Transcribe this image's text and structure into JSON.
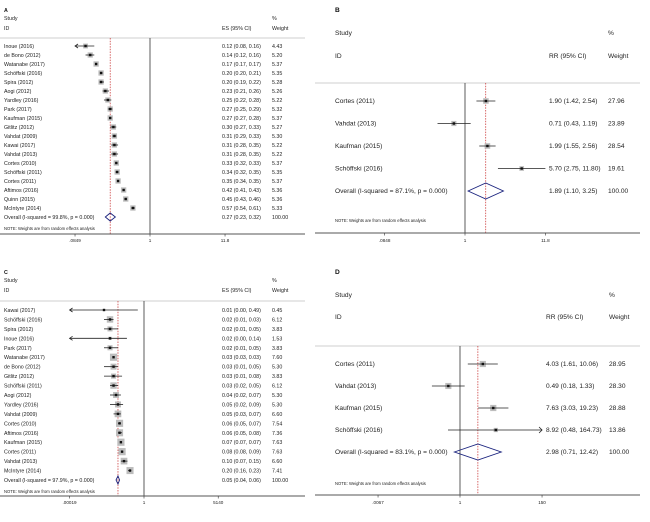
{
  "chart_data": [
    {
      "panel": "A",
      "type": "forest",
      "scale": "log",
      "col_study": "Study",
      "col_id": "ID",
      "col_es": "ES (95% CI)",
      "col_pct": "%",
      "col_weight": "Weight",
      "ticks": [
        {
          "v": 0.0849,
          "label": ".0849"
        },
        {
          "v": 1,
          "label": "1"
        },
        {
          "v": 11.8,
          "label": "11.8"
        }
      ],
      "note": "NOTE: Weights are from random effects analysis",
      "studies": [
        {
          "id": "Inoue (2016)",
          "es": 0.12,
          "lo": 0.08,
          "hi": 0.16,
          "w": 4.43,
          "es_text": "0.12 (0.08, 0.16)",
          "w_text": "4.43"
        },
        {
          "id": "de Bono (2012)",
          "es": 0.14,
          "lo": 0.12,
          "hi": 0.16,
          "w": 5.2,
          "es_text": "0.14 (0.12, 0.16)",
          "w_text": "5.20"
        },
        {
          "id": "Watanabe (2017)",
          "es": 0.17,
          "lo": 0.17,
          "hi": 0.17,
          "w": 5.37,
          "es_text": "0.17 (0.17, 0.17)",
          "w_text": "5.37"
        },
        {
          "id": "Schöffski (2016)",
          "es": 0.2,
          "lo": 0.2,
          "hi": 0.21,
          "w": 5.35,
          "es_text": "0.20 (0.20, 0.21)",
          "w_text": "5.35"
        },
        {
          "id": "Spira (2012)",
          "es": 0.2,
          "lo": 0.19,
          "hi": 0.22,
          "w": 5.28,
          "es_text": "0.20 (0.19, 0.22)",
          "w_text": "5.28"
        },
        {
          "id": "Aogi (2012)",
          "es": 0.23,
          "lo": 0.21,
          "hi": 0.26,
          "w": 5.26,
          "es_text": "0.23 (0.21, 0.26)",
          "w_text": "5.26"
        },
        {
          "id": "Yardley (2016)",
          "es": 0.25,
          "lo": 0.22,
          "hi": 0.28,
          "w": 5.22,
          "es_text": "0.25 (0.22, 0.28)",
          "w_text": "5.22"
        },
        {
          "id": "Park (2017)",
          "es": 0.27,
          "lo": 0.25,
          "hi": 0.29,
          "w": 5.32,
          "es_text": "0.27 (0.25, 0.29)",
          "w_text": "5.32"
        },
        {
          "id": "Kaufman (2015)",
          "es": 0.27,
          "lo": 0.27,
          "hi": 0.28,
          "w": 5.37,
          "es_text": "0.27 (0.27, 0.28)",
          "w_text": "5.37"
        },
        {
          "id": "Gitlitz (2012)",
          "es": 0.3,
          "lo": 0.27,
          "hi": 0.33,
          "w": 5.27,
          "es_text": "0.30 (0.27, 0.33)",
          "w_text": "5.27"
        },
        {
          "id": "Vahdat (2009)",
          "es": 0.31,
          "lo": 0.29,
          "hi": 0.33,
          "w": 5.3,
          "es_text": "0.31 (0.29, 0.33)",
          "w_text": "5.30"
        },
        {
          "id": "Kawai (2017)",
          "es": 0.31,
          "lo": 0.28,
          "hi": 0.35,
          "w": 5.22,
          "es_text": "0.31 (0.28, 0.35)",
          "w_text": "5.22"
        },
        {
          "id": "Vahdat (2013)",
          "es": 0.31,
          "lo": 0.28,
          "hi": 0.35,
          "w": 5.22,
          "es_text": "0.31 (0.28, 0.35)",
          "w_text": "5.22"
        },
        {
          "id": "Cortes (2010)",
          "es": 0.33,
          "lo": 0.32,
          "hi": 0.33,
          "w": 5.37,
          "es_text": "0.33 (0.32, 0.33)",
          "w_text": "5.37"
        },
        {
          "id": "Schöffski (2011)",
          "es": 0.34,
          "lo": 0.32,
          "hi": 0.35,
          "w": 5.35,
          "es_text": "0.34 (0.32, 0.35)",
          "w_text": "5.35"
        },
        {
          "id": "Cortes (2011)",
          "es": 0.35,
          "lo": 0.34,
          "hi": 0.35,
          "w": 5.37,
          "es_text": "0.35 (0.34, 0.35)",
          "w_text": "5.37"
        },
        {
          "id": "Aftimos (2016)",
          "es": 0.42,
          "lo": 0.41,
          "hi": 0.43,
          "w": 5.36,
          "es_text": "0.42 (0.41, 0.43)",
          "w_text": "5.36"
        },
        {
          "id": "Quinn (2015)",
          "es": 0.45,
          "lo": 0.43,
          "hi": 0.46,
          "w": 5.36,
          "es_text": "0.45 (0.43, 0.46)",
          "w_text": "5.36"
        },
        {
          "id": "McIntyre (2014)",
          "es": 0.57,
          "lo": 0.54,
          "hi": 0.61,
          "w": 5.33,
          "es_text": "0.57 (0.54, 0.61)",
          "w_text": "5.33"
        }
      ],
      "overall": {
        "label": "Overall  (I-squared = 99.8%, p = 0.000)",
        "es": 0.27,
        "lo": 0.23,
        "hi": 0.32,
        "es_text": "0.27 (0.23, 0.32)",
        "w_text": "100.00"
      }
    },
    {
      "panel": "B",
      "type": "forest",
      "scale": "log",
      "col_study": "Study",
      "col_id": "ID",
      "col_es": "RR (95% CI)",
      "col_pct": "%",
      "col_weight": "Weight",
      "ticks": [
        {
          "v": 0.0848,
          "label": ".0848"
        },
        {
          "v": 1,
          "label": "1"
        },
        {
          "v": 11.8,
          "label": "11.8"
        }
      ],
      "note": "NOTE: Weights are from random effects analysis",
      "studies": [
        {
          "id": "Cortes (2011)",
          "es": 1.9,
          "lo": 1.42,
          "hi": 2.54,
          "w": 27.96,
          "es_text": "1.90 (1.42, 2.54)",
          "w_text": "27.96"
        },
        {
          "id": "Vahdat (2013)",
          "es": 0.71,
          "lo": 0.43,
          "hi": 1.19,
          "w": 23.89,
          "es_text": "0.71 (0.43, 1.19)",
          "w_text": "23.89"
        },
        {
          "id": "Kaufman (2015)",
          "es": 1.99,
          "lo": 1.55,
          "hi": 2.56,
          "w": 28.54,
          "es_text": "1.99 (1.55, 2.56)",
          "w_text": "28.54"
        },
        {
          "id": "Schöffski (2016)",
          "es": 5.7,
          "lo": 2.75,
          "hi": 11.8,
          "w": 19.61,
          "es_text": "5.70 (2.75, 11.80)",
          "w_text": "19.61"
        }
      ],
      "overall": {
        "label": "Overall  (I-squared = 87.1%, p = 0.000)",
        "es": 1.89,
        "lo": 1.1,
        "hi": 3.25,
        "es_text": "1.89 (1.10, 3.25)",
        "w_text": "100.00"
      }
    },
    {
      "panel": "C",
      "type": "forest",
      "scale": "log",
      "col_study": "Study",
      "col_id": "ID",
      "col_es": "ES (95% CI)",
      "col_pct": "%",
      "col_weight": "Weight",
      "ticks": [
        {
          "v": 0.00019,
          "label": ".00019"
        },
        {
          "v": 1,
          "label": "1"
        },
        {
          "v": 5140,
          "label": "5140"
        }
      ],
      "note": "NOTE: Weights are from random effects analysis",
      "studies": [
        {
          "id": "Kawai (2017)",
          "es": 0.01,
          "lo": 0.0,
          "hi": 0.49,
          "w": 0.45,
          "es_text": "0.01 (0.00, 0.49)",
          "w_text": "0.45"
        },
        {
          "id": "Schöffski (2016)",
          "es": 0.02,
          "lo": 0.01,
          "hi": 0.03,
          "w": 6.12,
          "es_text": "0.02 (0.01, 0.03)",
          "w_text": "6.12"
        },
        {
          "id": "Spira (2012)",
          "es": 0.02,
          "lo": 0.01,
          "hi": 0.05,
          "w": 3.83,
          "es_text": "0.02 (0.01, 0.05)",
          "w_text": "3.83"
        },
        {
          "id": "Inoue (2016)",
          "es": 0.02,
          "lo": 0.0,
          "hi": 0.14,
          "w": 1.53,
          "es_text": "0.02 (0.00, 0.14)",
          "w_text": "1.53"
        },
        {
          "id": "Park (2017)",
          "es": 0.02,
          "lo": 0.01,
          "hi": 0.05,
          "w": 3.83,
          "es_text": "0.02 (0.01, 0.05)",
          "w_text": "3.83"
        },
        {
          "id": "Watanabe (2017)",
          "es": 0.03,
          "lo": 0.03,
          "hi": 0.03,
          "w": 7.6,
          "es_text": "0.03 (0.03, 0.03)",
          "w_text": "7.60"
        },
        {
          "id": "de Bono (2012)",
          "es": 0.03,
          "lo": 0.01,
          "hi": 0.05,
          "w": 5.3,
          "es_text": "0.03 (0.01, 0.05)",
          "w_text": "5.30"
        },
        {
          "id": "Gitlitz (2012)",
          "es": 0.03,
          "lo": 0.01,
          "hi": 0.08,
          "w": 3.83,
          "es_text": "0.03 (0.01, 0.08)",
          "w_text": "3.83"
        },
        {
          "id": "Schöffski (2011)",
          "es": 0.03,
          "lo": 0.02,
          "hi": 0.05,
          "w": 6.12,
          "es_text": "0.03 (0.02, 0.05)",
          "w_text": "6.12"
        },
        {
          "id": "Aogi (2012)",
          "es": 0.04,
          "lo": 0.02,
          "hi": 0.07,
          "w": 5.3,
          "es_text": "0.04 (0.02, 0.07)",
          "w_text": "5.30"
        },
        {
          "id": "Yardley (2016)",
          "es": 0.05,
          "lo": 0.02,
          "hi": 0.09,
          "w": 5.3,
          "es_text": "0.05 (0.02, 0.09)",
          "w_text": "5.30"
        },
        {
          "id": "Vahdat (2009)",
          "es": 0.05,
          "lo": 0.03,
          "hi": 0.07,
          "w": 6.6,
          "es_text": "0.05 (0.03, 0.07)",
          "w_text": "6.60"
        },
        {
          "id": "Cortes (2010)",
          "es": 0.06,
          "lo": 0.05,
          "hi": 0.07,
          "w": 7.54,
          "es_text": "0.06 (0.05, 0.07)",
          "w_text": "7.54"
        },
        {
          "id": "Aftimos (2016)",
          "es": 0.06,
          "lo": 0.05,
          "hi": 0.08,
          "w": 7.36,
          "es_text": "0.06 (0.05, 0.08)",
          "w_text": "7.36"
        },
        {
          "id": "Kaufman (2015)",
          "es": 0.07,
          "lo": 0.07,
          "hi": 0.07,
          "w": 7.63,
          "es_text": "0.07 (0.07, 0.07)",
          "w_text": "7.63"
        },
        {
          "id": "Cortes (2011)",
          "es": 0.08,
          "lo": 0.08,
          "hi": 0.09,
          "w": 7.63,
          "es_text": "0.08 (0.08, 0.09)",
          "w_text": "7.63"
        },
        {
          "id": "Vahdat (2013)",
          "es": 0.1,
          "lo": 0.07,
          "hi": 0.15,
          "w": 6.6,
          "es_text": "0.10 (0.07, 0.15)",
          "w_text": "6.60"
        },
        {
          "id": "McIntyre (2014)",
          "es": 0.2,
          "lo": 0.16,
          "hi": 0.23,
          "w": 7.41,
          "es_text": "0.20 (0.16, 0.23)",
          "w_text": "7.41"
        }
      ],
      "overall": {
        "label": "Overall  (I-squared = 97.9%, p = 0.000)",
        "es": 0.05,
        "lo": 0.04,
        "hi": 0.06,
        "es_text": "0.05 (0.04, 0.06)",
        "w_text": "100.00"
      }
    },
    {
      "panel": "D",
      "type": "forest",
      "scale": "log",
      "col_study": "Study",
      "col_id": "ID",
      "col_es": "RR (95% CI)",
      "col_pct": "%",
      "col_weight": "Weight",
      "ticks": [
        {
          "v": 0.0067,
          "label": ".0067"
        },
        {
          "v": 1,
          "label": "1"
        },
        {
          "v": 150,
          "label": "150"
        }
      ],
      "note": "NOTE: Weights are from random effects analysis",
      "studies": [
        {
          "id": "Cortes (2011)",
          "es": 4.03,
          "lo": 1.61,
          "hi": 10.06,
          "w": 28.95,
          "es_text": "4.03 (1.61, 10.06)",
          "w_text": "28.95"
        },
        {
          "id": "Vahdat (2013)",
          "es": 0.49,
          "lo": 0.18,
          "hi": 1.33,
          "w": 28.3,
          "es_text": "0.49 (0.18, 1.33)",
          "w_text": "28.30"
        },
        {
          "id": "Kaufman (2015)",
          "es": 7.63,
          "lo": 3.03,
          "hi": 19.23,
          "w": 28.88,
          "es_text": "7.63 (3.03, 19.23)",
          "w_text": "28.88"
        },
        {
          "id": "Schöffski (2016)",
          "es": 8.92,
          "lo": 0.48,
          "hi": 164.73,
          "w": 13.86,
          "es_text": "8.92 (0.48, 164.73)",
          "w_text": "13.86"
        }
      ],
      "overall": {
        "label": "Overall  (I-squared = 83.1%, p = 0.000)",
        "es": 2.98,
        "lo": 0.71,
        "hi": 12.42,
        "es_text": "2.98 (0.71, 12.42)",
        "w_text": "100.00"
      }
    }
  ],
  "colors": {
    "box": "#bdbdbd",
    "marker": "#111111",
    "diamond": "#1a237e",
    "overall_line": "#c62828",
    "axis": "#555555"
  }
}
